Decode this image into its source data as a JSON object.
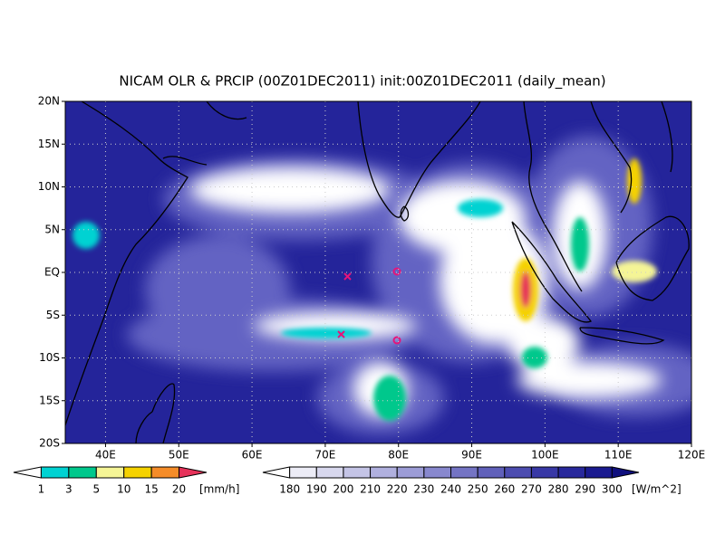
{
  "map": {
    "title": "NICAM OLR & PRCIP (00Z01DEC2011) init:00Z01DEC2011 (daily_mean)",
    "lonlim": [
      34.5,
      120
    ],
    "latlim": [
      -20,
      20
    ],
    "lonticks": [
      {
        "value": 40,
        "label": "40E"
      },
      {
        "value": 50,
        "label": "50E"
      },
      {
        "value": 60,
        "label": "60E"
      },
      {
        "value": 70,
        "label": "70E"
      },
      {
        "value": 80,
        "label": "80E"
      },
      {
        "value": 90,
        "label": "90E"
      },
      {
        "value": 100,
        "label": "100E"
      },
      {
        "value": 110,
        "label": "110E"
      },
      {
        "value": 120,
        "label": "120E"
      }
    ],
    "latticks": [
      {
        "value": 20,
        "label": "20N"
      },
      {
        "value": 15,
        "label": "15N"
      },
      {
        "value": 10,
        "label": "10N"
      },
      {
        "value": 5,
        "label": "5N"
      },
      {
        "value": 0,
        "label": "EQ"
      },
      {
        "value": -5,
        "label": "5S"
      },
      {
        "value": -10,
        "label": "10S"
      },
      {
        "value": -15,
        "label": "15S"
      },
      {
        "value": -20,
        "label": "20S"
      }
    ],
    "precip_colorbar": {
      "levels": [
        1,
        3,
        5,
        10,
        15,
        20
      ],
      "unit": "[mm/h]",
      "colors": [
        "#ffffff",
        "#00d2d2",
        "#00c88c",
        "#f5f596",
        "#f5d200",
        "#f58c28",
        "#e6325a"
      ]
    },
    "olr_colorbar": {
      "levels": [
        180,
        190,
        200,
        210,
        220,
        230,
        240,
        250,
        260,
        270,
        280,
        290,
        300
      ],
      "unit": "[W/m^2]",
      "colors": [
        "#ffffff",
        "#ececf6",
        "#d8d8ee",
        "#c4c4e6",
        "#b0b0de",
        "#9c9cd6",
        "#8888ce",
        "#7474c4",
        "#6060ba",
        "#4c4cb0",
        "#3838a6",
        "#28289c",
        "#1a1a90",
        "#10107e"
      ]
    }
  }
}
